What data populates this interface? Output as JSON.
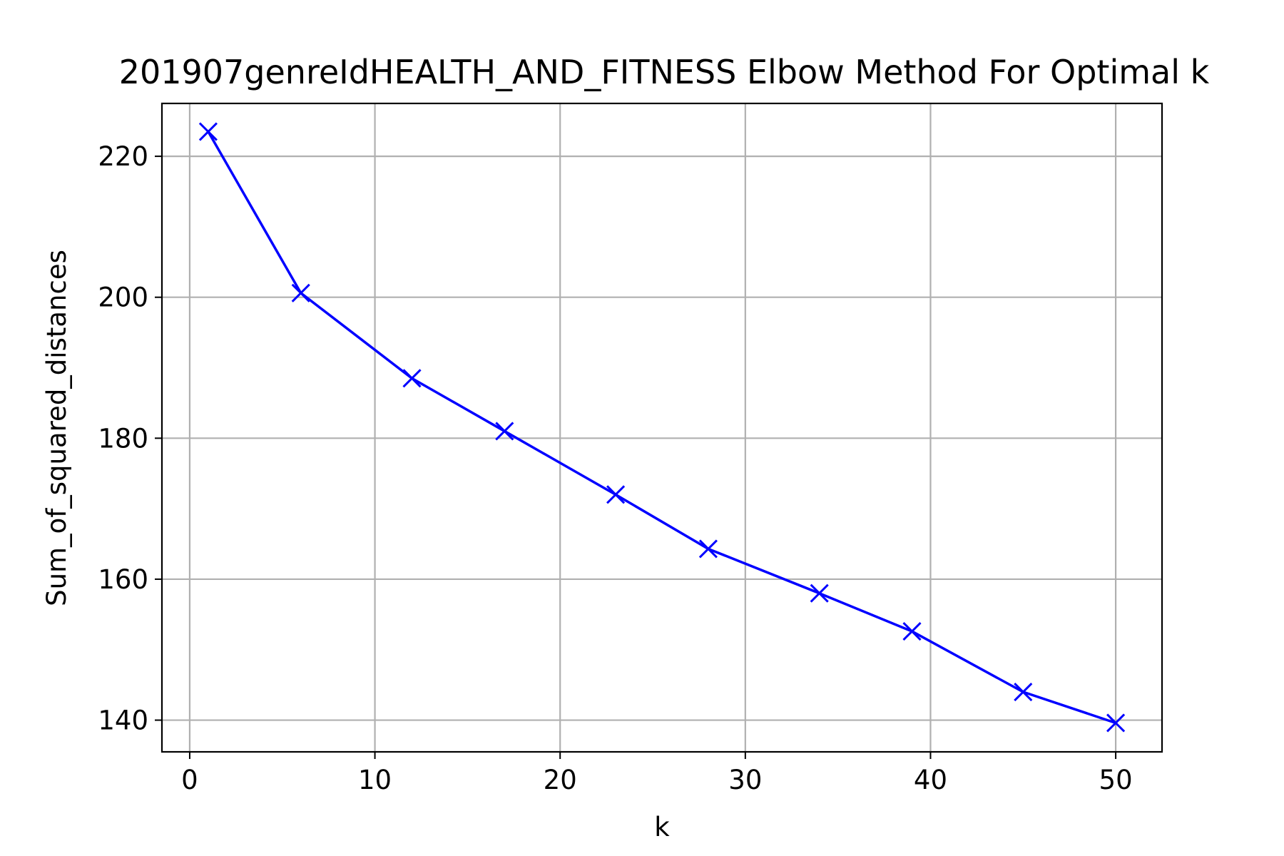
{
  "chart_data": {
    "type": "line",
    "title": "201907genreIdHEALTH_AND_FITNESS Elbow Method For Optimal k",
    "xlabel": "k",
    "ylabel": "Sum_of_squared_distances",
    "xlim": [
      -1.5,
      52.5
    ],
    "ylim": [
      135.5,
      227.5
    ],
    "xticks": [
      0,
      10,
      20,
      30,
      40,
      50
    ],
    "yticks": [
      140,
      160,
      180,
      200,
      220
    ],
    "grid": true,
    "series": [
      {
        "color": "#0000ff",
        "marker": "x",
        "x": [
          1,
          6,
          12,
          17,
          23,
          28,
          34,
          39,
          45,
          50
        ],
        "y": [
          223.5,
          200.6,
          188.5,
          181.0,
          172.0,
          164.3,
          158.0,
          152.6,
          144.0,
          139.6
        ]
      }
    ]
  }
}
